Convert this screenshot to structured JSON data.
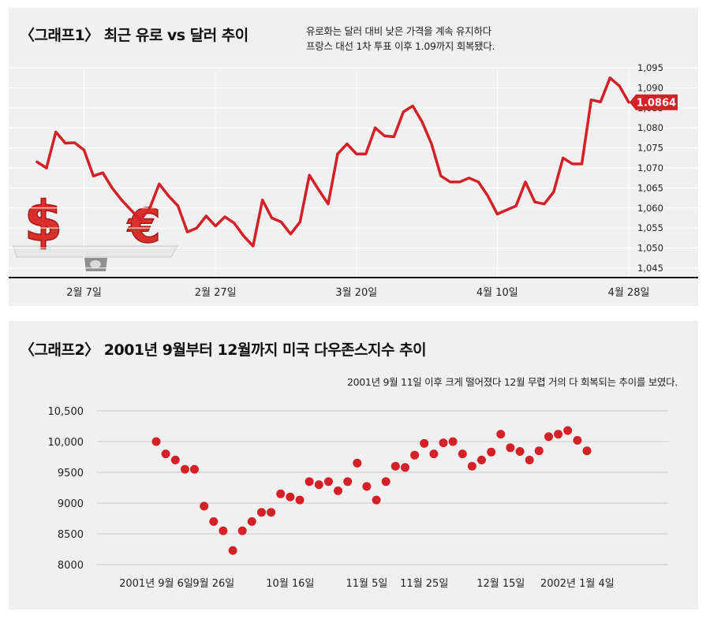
{
  "chart_data": [
    {
      "type": "line",
      "title": "〈그래프1〉 최근 유로 vs 달러 추이",
      "subtitle_lines": [
        "유로화는 달러 대비 낮은 가격을 계속 유지하다",
        "프랑스 대선 1차 투표 이후 1.09까지 회복됐다."
      ],
      "ylim": [
        1.044,
        1.096
      ],
      "y_ticks": [
        "1,045",
        "1,050",
        "1,055",
        "1,060",
        "1,065",
        "1,070",
        "1,075",
        "1,080",
        "1,085",
        "1,090",
        "1,095"
      ],
      "x_ticks": [
        {
          "label": "2월 7일",
          "index": 5
        },
        {
          "label": "2월 27일",
          "index": 19
        },
        {
          "label": "3월 20일",
          "index": 34
        },
        {
          "label": "4월 10일",
          "index": 49
        },
        {
          "label": "4월 28일",
          "index": 63
        }
      ],
      "values": [
        1.0715,
        1.07,
        1.079,
        1.0762,
        1.0763,
        1.0745,
        1.068,
        1.0688,
        1.065,
        1.062,
        1.0595,
        1.057,
        1.06,
        1.066,
        1.063,
        1.0605,
        1.054,
        1.055,
        1.058,
        1.0555,
        1.0578,
        1.0562,
        1.053,
        1.0505,
        1.062,
        1.0575,
        1.0565,
        1.0535,
        1.0565,
        1.0682,
        1.0645,
        1.061,
        1.0735,
        1.076,
        1.0735,
        1.0735,
        1.08,
        1.078,
        1.0778,
        1.084,
        1.0855,
        1.0815,
        1.076,
        1.068,
        1.0665,
        1.0665,
        1.0675,
        1.0665,
        1.063,
        1.0585,
        1.0595,
        1.0605,
        1.0665,
        1.0615,
        1.061,
        1.064,
        1.0725,
        1.071,
        1.071,
        1.087,
        1.0865,
        1.0925,
        1.0905,
        1.0864
      ],
      "last_value_label": "1.0864",
      "series_color": "#d42027"
    },
    {
      "type": "scatter",
      "title": "〈그래프2〉 2001년 9월부터 12월까지 미국 다우존스지수 추이",
      "subtitle": "2001년 9월 11일 이후 크게 떨어졌다 12월 무렵 거의 다 회복되는 추이를 보였다.",
      "ylim": [
        8000,
        10500
      ],
      "y_ticks": [
        {
          "label": "8000",
          "value": 8000
        },
        {
          "label": "8500",
          "value": 8500
        },
        {
          "label": "9000",
          "value": 9000
        },
        {
          "label": "9500",
          "value": 9500
        },
        {
          "label": "10,000",
          "value": 10000
        },
        {
          "label": "10,500",
          "value": 10500
        }
      ],
      "x_ticks": [
        {
          "label": "2001년 9월 6일",
          "index": 0
        },
        {
          "label": "9월 26일",
          "index": 6
        },
        {
          "label": "10월 16일",
          "index": 14
        },
        {
          "label": "11월 5일",
          "index": 22
        },
        {
          "label": "11월 25일",
          "index": 28
        },
        {
          "label": "12월 15일",
          "index": 36
        },
        {
          "label": "2002년 1월 4일",
          "index": 44
        }
      ],
      "values": [
        10000,
        9800,
        9700,
        9550,
        9550,
        8950,
        8700,
        8550,
        8230,
        8550,
        8700,
        8850,
        8850,
        9150,
        9100,
        9050,
        9350,
        9300,
        9350,
        9200,
        9350,
        9650,
        9270,
        9050,
        9350,
        9600,
        9580,
        9780,
        9970,
        9800,
        9980,
        10000,
        9800,
        9600,
        9700,
        9830,
        10120,
        9900,
        9840,
        9700,
        9850,
        10080,
        10120,
        10180,
        10020,
        9850
      ],
      "series_color": "#d42027"
    }
  ]
}
